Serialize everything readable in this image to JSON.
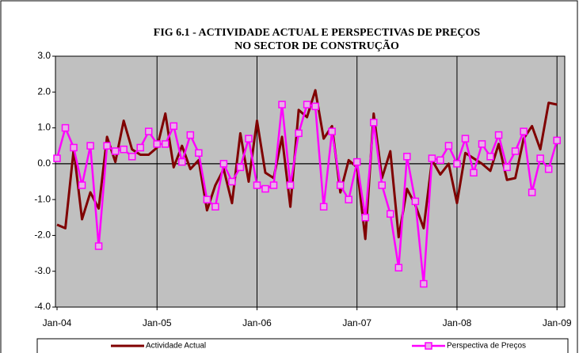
{
  "chart_data": {
    "type": "line",
    "title": [
      "FIG 6.1 - ACTIVIDADE ACTUAL  E PERSPECTIVAS DE PREÇOS",
      "NO SECTOR DE CONSTRUÇÃO"
    ],
    "categories": [
      "Jan-04",
      null,
      null,
      null,
      null,
      null,
      null,
      null,
      null,
      null,
      null,
      null,
      "Jan-05",
      null,
      null,
      null,
      null,
      null,
      null,
      null,
      null,
      null,
      null,
      null,
      "Jan-06",
      null,
      null,
      null,
      null,
      null,
      null,
      null,
      null,
      null,
      null,
      null,
      "Jan-07",
      null,
      null,
      null,
      null,
      null,
      null,
      null,
      null,
      null,
      null,
      null,
      "Jan-08",
      null,
      null,
      null,
      null,
      null,
      null,
      null,
      null,
      null,
      null,
      null,
      "Jan-09"
    ],
    "series": [
      {
        "name": "Actividade Actual",
        "color": "#800000",
        "values": [
          -1.7,
          -1.8,
          0.4,
          -1.55,
          -0.8,
          -1.25,
          0.75,
          0.05,
          1.2,
          0.4,
          0.25,
          0.25,
          0.45,
          1.4,
          -0.1,
          0.5,
          -0.15,
          0.1,
          -1.3,
          -0.6,
          -0.15,
          -1.1,
          0.85,
          -0.5,
          1.2,
          -0.25,
          -0.4,
          0.75,
          -1.2,
          1.5,
          1.3,
          2.05,
          0.7,
          1.05,
          -0.8,
          0.1,
          -0.1,
          -2.1,
          1.4,
          -0.4,
          0.35,
          -2.05,
          -0.7,
          -1.15,
          -1.8,
          0.1,
          -0.3,
          0.0,
          -1.1,
          0.3,
          0.15,
          0.0,
          -0.2,
          0.55,
          -0.45,
          -0.4,
          0.7,
          1.05,
          0.4,
          1.7,
          1.65
        ]
      },
      {
        "name": "Perspectiva de Preços",
        "color": "#ff00ff",
        "values": [
          0.15,
          1.0,
          0.45,
          -0.6,
          0.5,
          -2.3,
          0.5,
          0.35,
          0.4,
          0.2,
          0.45,
          0.9,
          0.55,
          0.55,
          1.05,
          0.05,
          0.8,
          0.3,
          -1.0,
          -1.2,
          0.0,
          -0.5,
          -0.1,
          0.7,
          -0.6,
          -0.7,
          -0.6,
          1.65,
          -0.6,
          0.85,
          1.65,
          1.6,
          -1.2,
          0.9,
          -0.6,
          -1.0,
          0.05,
          -1.5,
          1.15,
          -0.6,
          -1.4,
          -2.9,
          0.2,
          -1.05,
          -3.35,
          0.15,
          0.1,
          0.5,
          0.0,
          0.7,
          -0.25,
          0.55,
          0.2,
          0.8,
          -0.1,
          0.35,
          0.9,
          -0.8,
          0.15,
          -0.15,
          0.65
        ]
      }
    ],
    "ylim": [
      -4,
      3
    ],
    "yticks": [
      {
        "value": -4,
        "label": "-4.0"
      },
      {
        "value": -3,
        "label": "-3.0"
      },
      {
        "value": -2,
        "label": "-2.0"
      },
      {
        "value": -1,
        "label": "-1.0"
      },
      {
        "value": 0,
        "label": "0.0"
      },
      {
        "value": 1,
        "label": "1.0"
      },
      {
        "value": 2,
        "label": "2.0"
      },
      {
        "value": 3,
        "label": "3.0"
      }
    ],
    "plot_background": "#c0c0c0"
  }
}
